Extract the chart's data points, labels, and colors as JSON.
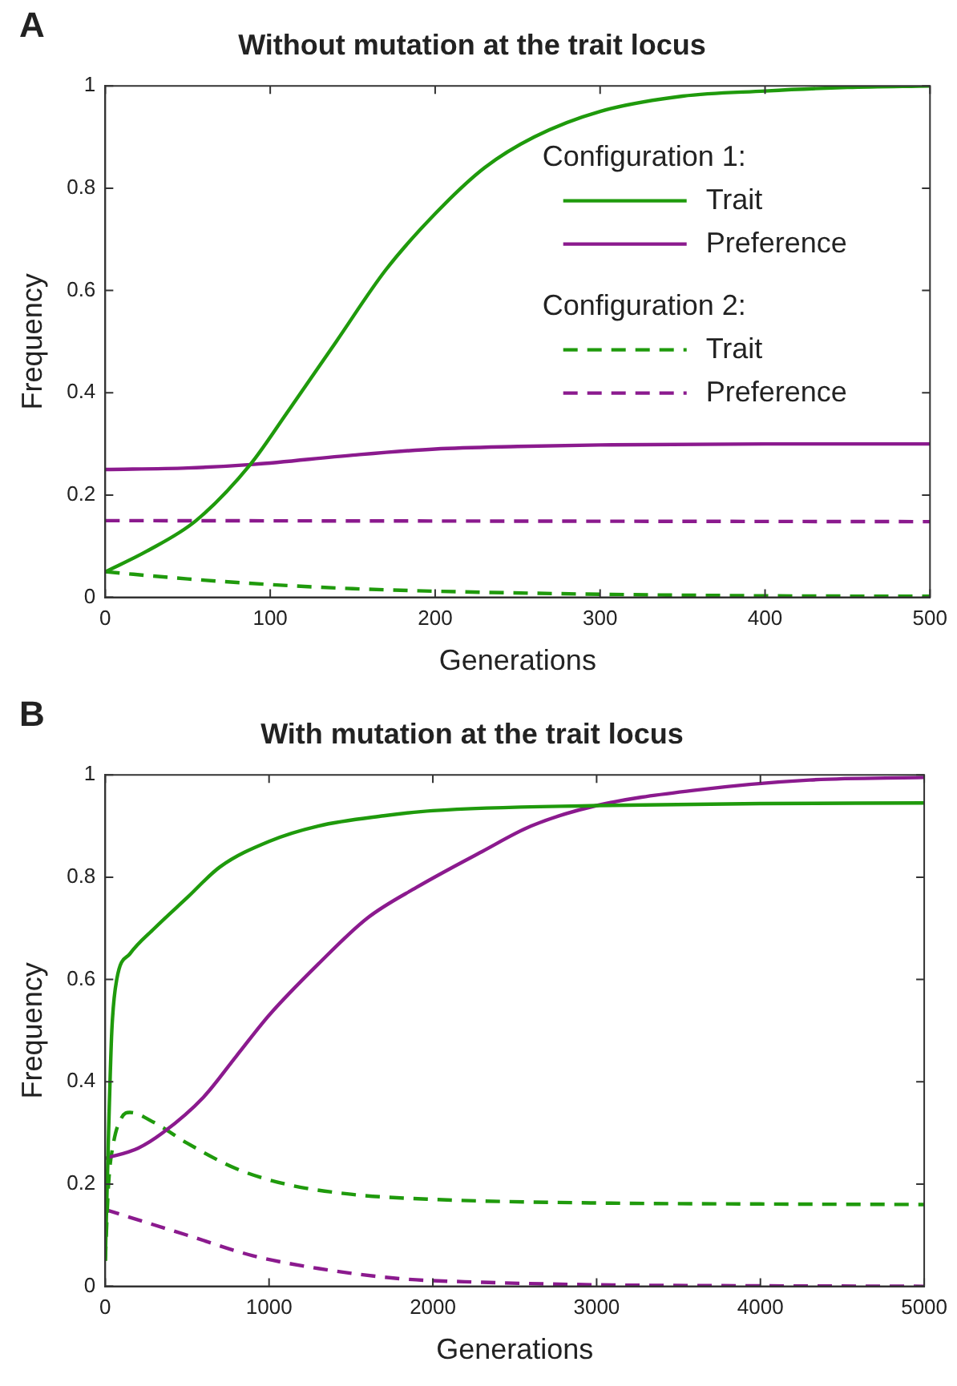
{
  "chart_data": [
    {
      "type": "line",
      "title": "Without mutation at the trait locus",
      "xlabel": "Generations",
      "ylabel": "Frequency",
      "xlim": [
        0,
        500
      ],
      "xticks": [
        0,
        100,
        200,
        300,
        400,
        500
      ],
      "ylim": [
        0,
        1
      ],
      "yticks": [
        0,
        0.2,
        0.4,
        0.6,
        0.8,
        1
      ],
      "grid": false,
      "legend": "top right",
      "marker": "none",
      "annotations": [
        "A",
        "Configuration 1:",
        "Configuration 2:"
      ],
      "series": [
        {
          "name": "Trait",
          "color": "#1f9a0c",
          "line_style": "solid",
          "x": [
            0,
            25,
            55,
            88,
            110,
            140,
            170,
            200,
            230,
            260,
            300,
            350,
            400,
            450,
            500
          ],
          "values": [
            0.05,
            0.09,
            0.15,
            0.26,
            0.36,
            0.5,
            0.64,
            0.75,
            0.84,
            0.9,
            0.95,
            0.98,
            0.99,
            0.997,
            1.0
          ]
        },
        {
          "name": "Preference",
          "color": "#8b1a8e",
          "line_style": "solid",
          "x": [
            0,
            50,
            90,
            150,
            200,
            250,
            300,
            400,
            500
          ],
          "values": [
            0.25,
            0.253,
            0.26,
            0.278,
            0.29,
            0.295,
            0.298,
            0.3,
            0.3
          ]
        },
        {
          "name": "Trait",
          "color": "#1f9a0c",
          "line_style": "dashed",
          "x": [
            0,
            50,
            100,
            150,
            200,
            300,
            400,
            500
          ],
          "values": [
            0.05,
            0.036,
            0.025,
            0.017,
            0.012,
            0.006,
            0.003,
            0.002
          ]
        },
        {
          "name": "Preference",
          "color": "#8b1a8e",
          "line_style": "dashed",
          "x": [
            0,
            250,
            500
          ],
          "values": [
            0.15,
            0.149,
            0.148
          ]
        }
      ]
    },
    {
      "type": "line",
      "title": "With mutation at the trait locus",
      "xlabel": "Generations",
      "ylabel": "Frequency",
      "xlim": [
        0,
        5000
      ],
      "xticks": [
        0,
        1000,
        2000,
        3000,
        4000,
        5000
      ],
      "ylim": [
        0,
        1
      ],
      "yticks": [
        0,
        0.2,
        0.4,
        0.6,
        0.8,
        1
      ],
      "grid": false,
      "legend": false,
      "marker": "none",
      "annotations": [
        "B"
      ],
      "series": [
        {
          "color": "#1f9a0c",
          "line_style": "solid",
          "x": [
            0,
            20,
            40,
            70,
            150,
            300,
            500,
            700,
            1000,
            1300,
            1700,
            2000,
            3000,
            4000,
            5000
          ],
          "values": [
            0.05,
            0.3,
            0.5,
            0.6,
            0.65,
            0.7,
            0.76,
            0.82,
            0.87,
            0.9,
            0.92,
            0.93,
            0.94,
            0.944,
            0.945
          ]
        },
        {
          "color": "#8b1a8e",
          "line_style": "solid",
          "x": [
            0,
            200,
            350,
            600,
            800,
            1000,
            1300,
            1600,
            1900,
            2300,
            2600,
            3000,
            3600,
            4300,
            5000
          ],
          "values": [
            0.25,
            0.27,
            0.3,
            0.37,
            0.45,
            0.53,
            0.63,
            0.72,
            0.78,
            0.85,
            0.9,
            0.94,
            0.97,
            0.99,
            0.995
          ]
        },
        {
          "color": "#1f9a0c",
          "line_style": "dashed",
          "x": [
            0,
            20,
            50,
            100,
            150,
            300,
            500,
            800,
            1100,
            1500,
            2000,
            3000,
            4000,
            5000
          ],
          "values": [
            0.05,
            0.2,
            0.28,
            0.33,
            0.34,
            0.32,
            0.28,
            0.23,
            0.2,
            0.18,
            0.17,
            0.163,
            0.161,
            0.16
          ]
        },
        {
          "color": "#8b1a8e",
          "line_style": "dashed",
          "x": [
            0,
            200,
            500,
            900,
            1300,
            1800,
            2300,
            3000,
            4000,
            5000
          ],
          "values": [
            0.15,
            0.13,
            0.1,
            0.06,
            0.035,
            0.015,
            0.008,
            0.003,
            0.001,
            0.0
          ]
        }
      ]
    }
  ]
}
